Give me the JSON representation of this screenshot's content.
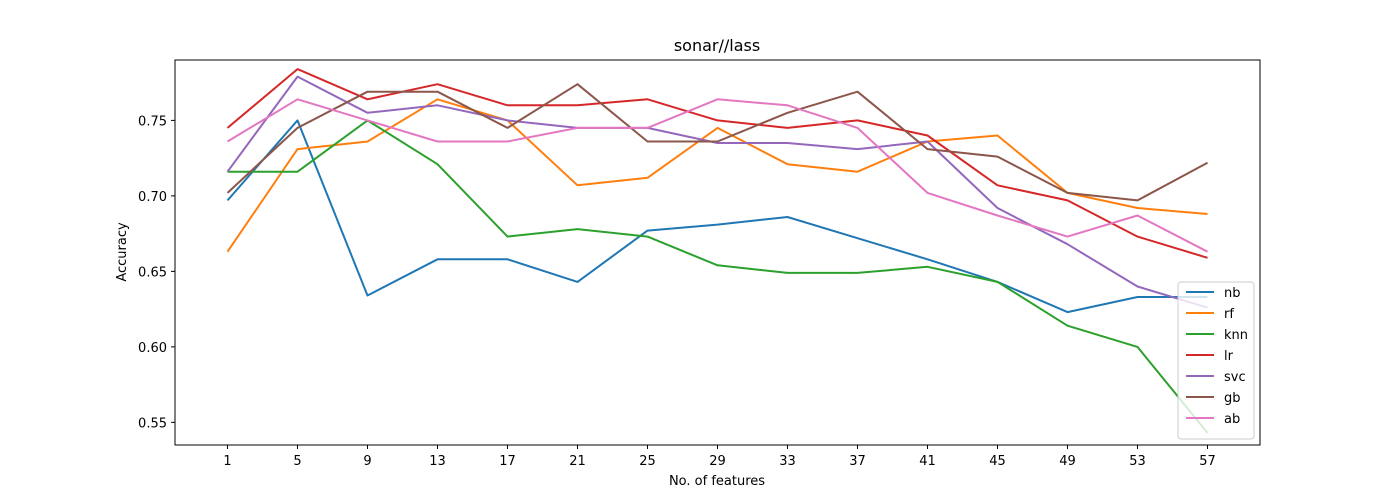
{
  "chart_data": {
    "type": "line",
    "title": "sonar//lass",
    "xlabel": "No. of features",
    "ylabel": "Accuracy",
    "x": [
      1,
      5,
      9,
      13,
      17,
      21,
      25,
      29,
      33,
      37,
      41,
      45,
      49,
      53,
      57
    ],
    "ylim": [
      0.535,
      0.79
    ],
    "yticks": [
      "0.55",
      "0.60",
      "0.65",
      "0.70",
      "0.75"
    ],
    "grid": false,
    "legend_position": "lower-right",
    "series": [
      {
        "name": "nb",
        "color": "#1f77b4",
        "values": [
          0.697,
          0.75,
          0.634,
          0.658,
          0.658,
          0.643,
          0.677,
          0.681,
          0.686,
          0.672,
          0.658,
          0.643,
          0.623,
          0.633,
          0.633
        ]
      },
      {
        "name": "rf",
        "color": "#ff7f0e",
        "values": [
          0.663,
          0.731,
          0.736,
          0.764,
          0.75,
          0.707,
          0.712,
          0.745,
          0.721,
          0.716,
          0.736,
          0.74,
          0.702,
          0.692,
          0.688
        ]
      },
      {
        "name": "knn",
        "color": "#2ca02c",
        "values": [
          0.716,
          0.716,
          0.75,
          0.721,
          0.673,
          0.678,
          0.673,
          0.654,
          0.649,
          0.649,
          0.653,
          0.643,
          0.614,
          0.6,
          0.543
        ]
      },
      {
        "name": "lr",
        "color": "#d62728",
        "values": [
          0.745,
          0.784,
          0.764,
          0.774,
          0.76,
          0.76,
          0.764,
          0.75,
          0.745,
          0.75,
          0.74,
          0.707,
          0.697,
          0.673,
          0.659
        ]
      },
      {
        "name": "svc",
        "color": "#9467bd",
        "values": [
          0.716,
          0.779,
          0.755,
          0.76,
          0.75,
          0.745,
          0.745,
          0.735,
          0.735,
          0.731,
          0.736,
          0.692,
          0.668,
          0.64,
          0.626
        ]
      },
      {
        "name": "gb",
        "color": "#8c564b",
        "values": [
          0.702,
          0.745,
          0.769,
          0.769,
          0.745,
          0.774,
          0.736,
          0.736,
          0.755,
          0.769,
          0.731,
          0.726,
          0.702,
          0.697,
          0.722
        ]
      },
      {
        "name": "ab",
        "color": "#e377c2",
        "values": [
          0.736,
          0.764,
          0.75,
          0.736,
          0.736,
          0.745,
          0.745,
          0.764,
          0.76,
          0.745,
          0.702,
          0.687,
          0.673,
          0.687,
          0.663
        ]
      }
    ]
  }
}
